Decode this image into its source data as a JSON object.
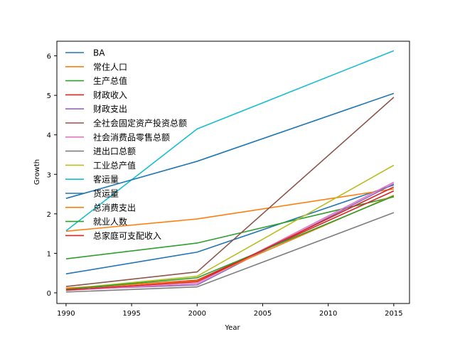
{
  "chart_data": {
    "type": "line",
    "title": "",
    "xlabel": "Year",
    "ylabel": "Growth",
    "x": [
      1990,
      2000,
      2015
    ],
    "xlim": [
      1989.3,
      2016.2
    ],
    "ylim": [
      -0.27,
      6.37
    ],
    "xticks": [
      "1990",
      "1995",
      "2000",
      "2005",
      "2010",
      "2015"
    ],
    "yticks": [
      "0",
      "1",
      "2",
      "3",
      "4",
      "5",
      "6"
    ],
    "grid": false,
    "legend_position": "upper-left",
    "series": [
      {
        "name": "BA",
        "color": "#1f77b4",
        "values": [
          0.48,
          1.03,
          2.73
        ]
      },
      {
        "name": "常住人口",
        "color": "#ff7f0e",
        "values": [
          1.56,
          1.87,
          2.63
        ]
      },
      {
        "name": "生产总值",
        "color": "#2ca02c",
        "values": [
          0.86,
          1.26,
          2.43
        ]
      },
      {
        "name": "财政收入",
        "color": "#d62728",
        "values": [
          0.1,
          0.32,
          2.58
        ]
      },
      {
        "name": "财政支出",
        "color": "#9467bd",
        "values": [
          0.08,
          0.2,
          2.76
        ]
      },
      {
        "name": "全社会固定资产投资总额",
        "color": "#8c564b",
        "values": [
          0.16,
          0.53,
          4.95
        ]
      },
      {
        "name": "社会消费品零售总额",
        "color": "#e377c2",
        "values": [
          0.06,
          0.24,
          2.8
        ]
      },
      {
        "name": "进出口总额",
        "color": "#7f7f7f",
        "values": [
          0.02,
          0.15,
          2.03
        ]
      },
      {
        "name": "工业总产值",
        "color": "#bcbd22",
        "values": [
          0.1,
          0.42,
          3.23
        ]
      },
      {
        "name": "客运量",
        "color": "#17becf",
        "values": [
          1.57,
          4.15,
          6.13
        ]
      },
      {
        "name": "货运量",
        "color": "#1f77b4",
        "values": [
          2.39,
          3.33,
          5.05
        ]
      },
      {
        "name": "总消费支出",
        "color": "#ff7f0e",
        "values": [
          0.12,
          0.3,
          2.47
        ]
      },
      {
        "name": "就业人数",
        "color": "#2ca02c",
        "values": [
          0.09,
          0.38,
          2.45
        ]
      },
      {
        "name": "总家庭可支配收入",
        "color": "#d62728",
        "values": [
          0.07,
          0.28,
          2.68
        ]
      }
    ]
  }
}
